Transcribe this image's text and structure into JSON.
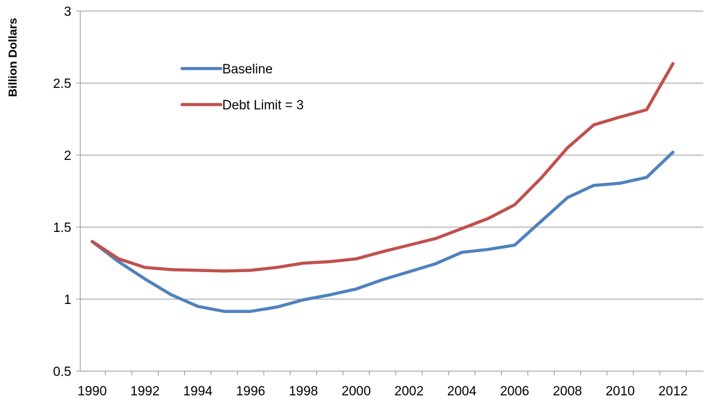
{
  "chart_data": {
    "type": "line",
    "title": "",
    "xlabel": "",
    "ylabel": "Billion Dollars",
    "ylim": [
      0.5,
      3
    ],
    "yticks": [
      "0.5",
      "1",
      "1.5",
      "2",
      "2.5",
      "3"
    ],
    "xticks": [
      "1990",
      "1992",
      "1994",
      "1996",
      "1998",
      "2000",
      "2002",
      "2004",
      "2006",
      "2008",
      "2010",
      "2012"
    ],
    "grid": true,
    "legend_position": "top-left inside plot",
    "x": [
      1990,
      1991,
      1992,
      1993,
      1994,
      1995,
      1996,
      1997,
      1998,
      1999,
      2000,
      2001,
      2002,
      2003,
      2004,
      2005,
      2006,
      2007,
      2008,
      2009,
      2010,
      2011,
      2012
    ],
    "series": [
      {
        "name": "Baseline",
        "color": "#4f81bd",
        "values": [
          1.4,
          1.26,
          1.14,
          1.03,
          0.95,
          0.915,
          0.915,
          0.945,
          0.995,
          1.03,
          1.07,
          1.135,
          1.19,
          1.245,
          1.325,
          1.345,
          1.375,
          1.54,
          1.705,
          1.79,
          1.805,
          1.845,
          2.02
        ]
      },
      {
        "name": "Debt Limit = 3",
        "color": "#c0504d",
        "values": [
          1.4,
          1.28,
          1.22,
          1.205,
          1.2,
          1.195,
          1.2,
          1.22,
          1.25,
          1.26,
          1.28,
          1.33,
          1.375,
          1.42,
          1.49,
          1.56,
          1.655,
          1.84,
          2.05,
          2.21,
          2.265,
          2.315,
          2.635
        ]
      }
    ]
  }
}
